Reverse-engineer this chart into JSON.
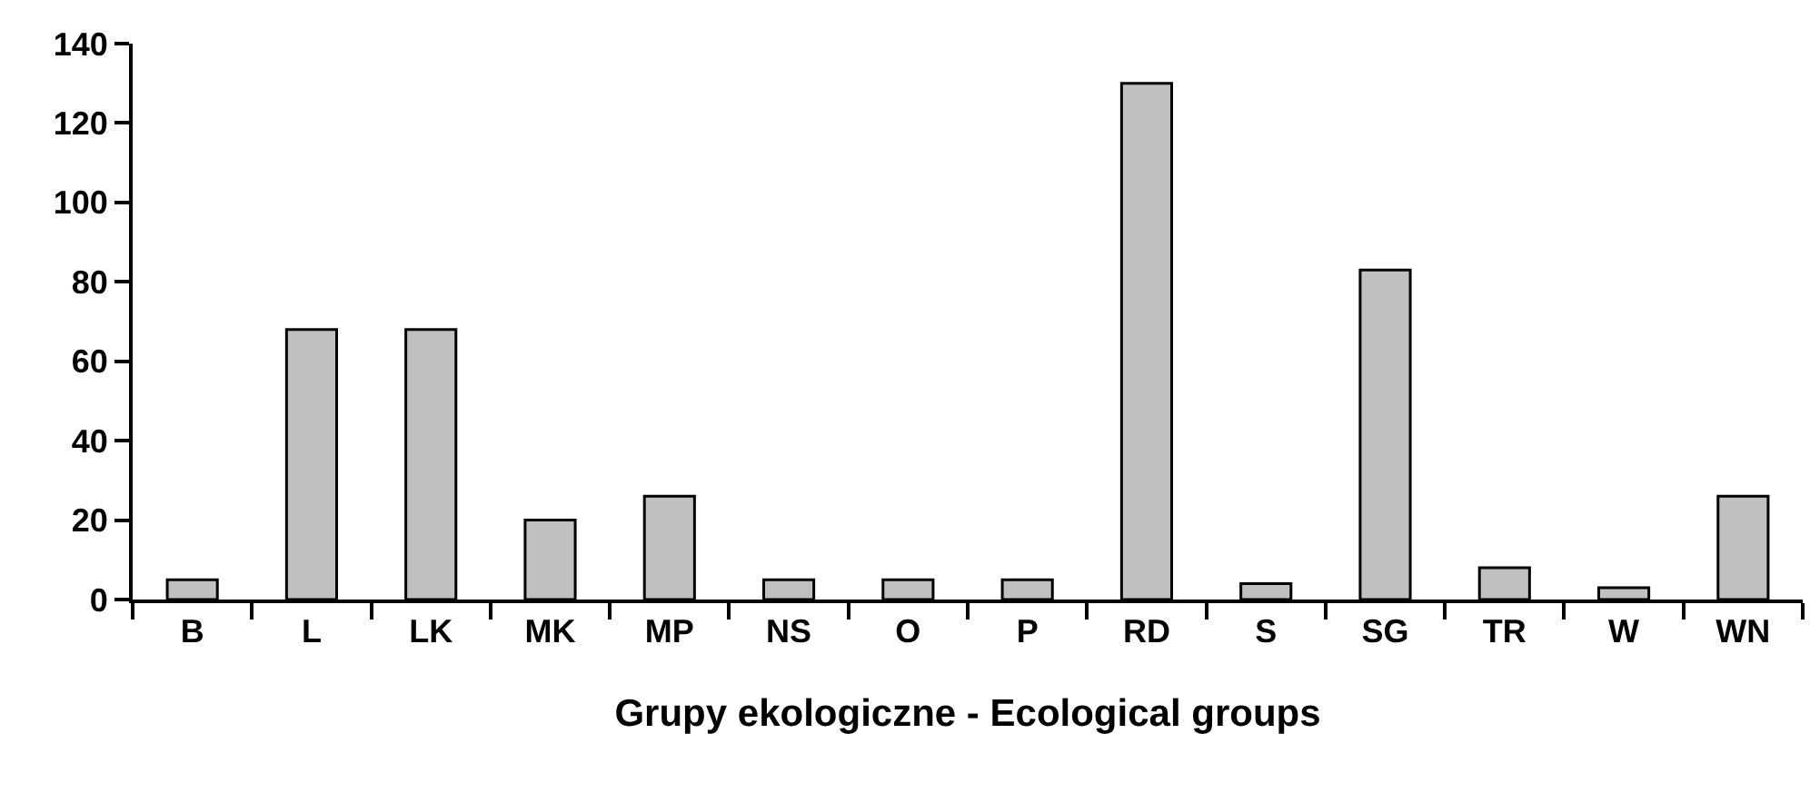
{
  "chart_data": {
    "type": "bar",
    "xlabel": "Grupy ekologiczne - Ecological groups",
    "categories": [
      "B",
      "L",
      "LK",
      "MK",
      "MP",
      "NS",
      "O",
      "P",
      "RD",
      "S",
      "SG",
      "TR",
      "W",
      "WN"
    ],
    "values": [
      5,
      68,
      68,
      20,
      26,
      5,
      5,
      5,
      130,
      4,
      83,
      8,
      3,
      26
    ],
    "color": "#c0c0c0",
    "ylim": [
      0,
      140
    ],
    "yticks": [
      0,
      20,
      40,
      60,
      80,
      100,
      120,
      140
    ],
    "grid": false
  }
}
